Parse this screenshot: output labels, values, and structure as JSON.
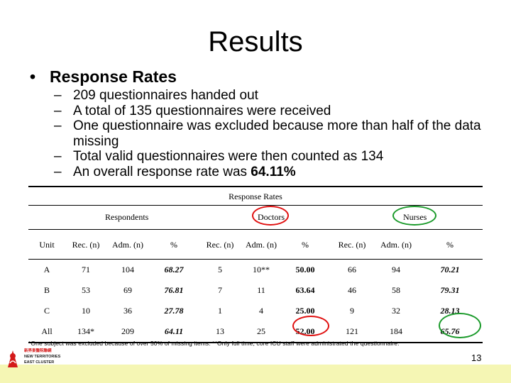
{
  "slide": {
    "title": "Results",
    "bullet": "Response Rates",
    "sub_bullets": [
      {
        "text": "209 questionnaires handed out",
        "bold_suffix": ""
      },
      {
        "text": "A total of 135 questionnaires were received",
        "bold_suffix": ""
      },
      {
        "text": "One questionnaire was excluded because more than half of the data missing",
        "bold_suffix": ""
      },
      {
        "text": "Total valid questionnaires were then counted as 134",
        "bold_suffix": ""
      },
      {
        "text": "An overall response rate was ",
        "bold_suffix": "64.11%"
      }
    ],
    "page_number": "13"
  },
  "table": {
    "title": "Response Rates",
    "groups": {
      "respondents": "Respondents",
      "doctors": "Doctors",
      "nurses": "Nurses"
    },
    "headers": [
      "Unit",
      "Rec. (n)",
      "Adm. (n)",
      "%",
      "Rec. (n)",
      "Adm. (n)",
      "%",
      "Rec. (n)",
      "Adm. (n)",
      "%"
    ],
    "rows": [
      [
        "A",
        "71",
        "104",
        "68.27",
        "5",
        "10**",
        "50.00",
        "66",
        "94",
        "70.21"
      ],
      [
        "B",
        "53",
        "69",
        "76.81",
        "7",
        "11",
        "63.64",
        "46",
        "58",
        "79.31"
      ],
      [
        "C",
        "10",
        "36",
        "27.78",
        "1",
        "4",
        "25.00",
        "9",
        "32",
        "28.13"
      ],
      [
        "All",
        "134*",
        "209",
        "64.11",
        "13",
        "25",
        "52.00",
        "121",
        "184",
        "65.76"
      ]
    ],
    "footnote": "*One subject was excluded because of over 50% of missing items. **Only full time, core ICU staff were administrated the questionnaire."
  },
  "logo": {
    "chinese": "新界東醫院聯網",
    "line1": "NEW TERRITORIES",
    "line2": "EAST CLUSTER"
  },
  "colors": {
    "highlight_red": "#e01010",
    "highlight_green": "#1a9a2a",
    "footer_bar": "#f5f6b4"
  }
}
